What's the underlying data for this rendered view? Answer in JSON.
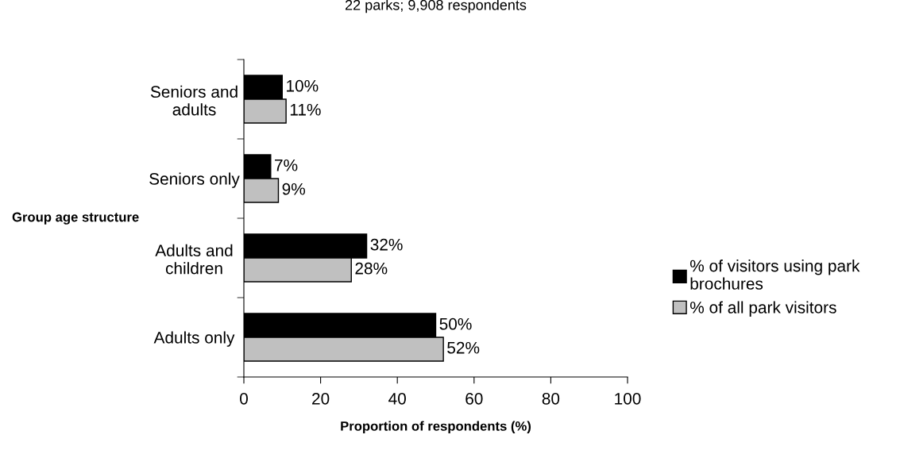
{
  "chart_data": {
    "type": "bar",
    "orientation": "horizontal",
    "title": "22 parks; 9,908 respondents",
    "xlabel": "Proportion of respondents (%)",
    "ylabel": "Group age structure",
    "categories": [
      "Seniors and\nadults",
      "Seniors only",
      "Adults and\nchildren",
      "Adults only"
    ],
    "series": [
      {
        "name": "% of visitors using park\nbrochures",
        "color": "#000000",
        "values": [
          10,
          7,
          32,
          50
        ],
        "value_labels": [
          "10%",
          "7%",
          "32%",
          "50%"
        ]
      },
      {
        "name": "% of all park visitors",
        "color": "#c0c0c0",
        "values": [
          11,
          9,
          28,
          52
        ],
        "value_labels": [
          "11%",
          "9%",
          "28%",
          "52%"
        ]
      }
    ],
    "xlim": [
      0,
      100
    ],
    "xticks": [
      0,
      20,
      40,
      60,
      80,
      100
    ],
    "legend": "right",
    "grid": false
  }
}
